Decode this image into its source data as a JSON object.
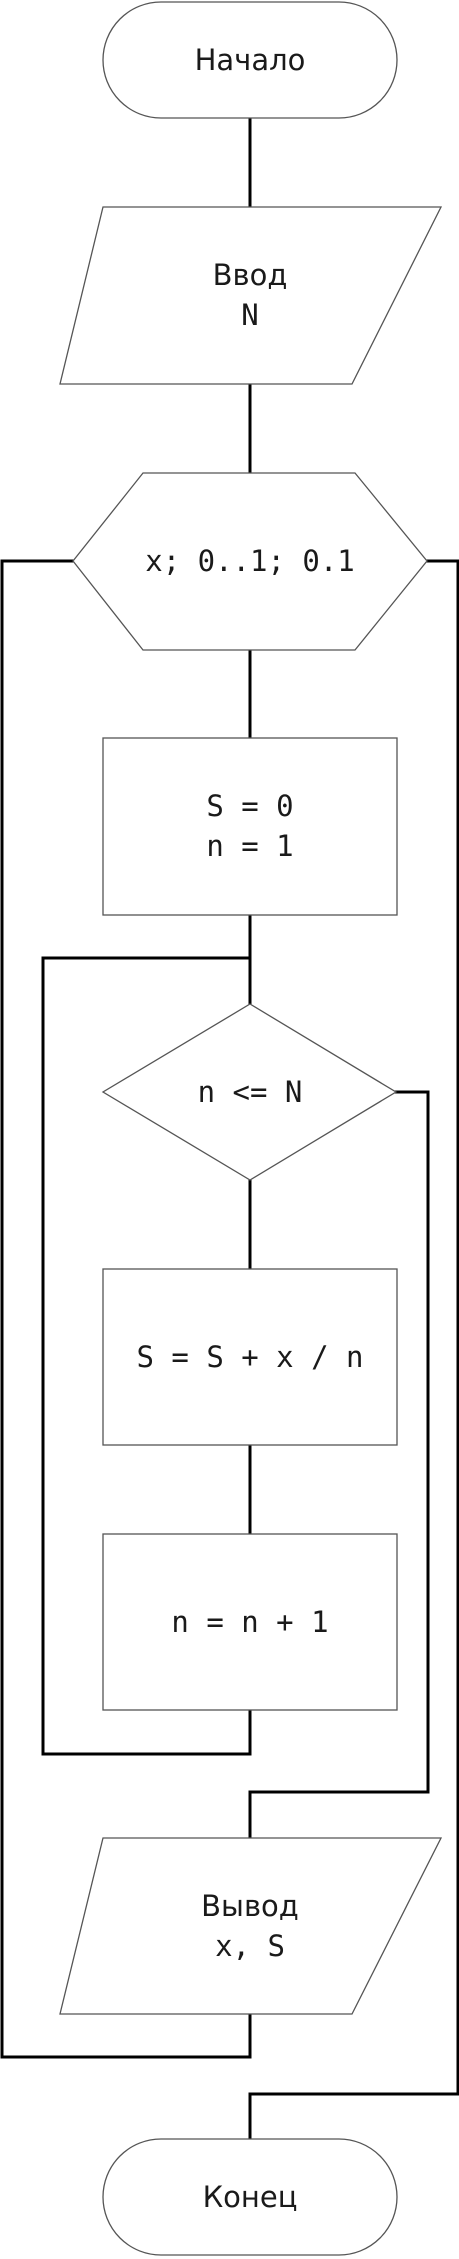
{
  "flowchart": {
    "start": {
      "label": "Начало"
    },
    "input": {
      "line1": "Ввод",
      "line2": "N"
    },
    "loop_x": {
      "label": "x; 0..1; 0.1"
    },
    "init": {
      "line1": "S = 0",
      "line2": "n = 1"
    },
    "condition": {
      "label": "n <= N"
    },
    "sum_step": {
      "label": "S = S + x / n"
    },
    "increment": {
      "label": "n = n + 1"
    },
    "output": {
      "line1": "Вывод",
      "line2": "x, S"
    },
    "end": {
      "label": "Конец"
    }
  }
}
